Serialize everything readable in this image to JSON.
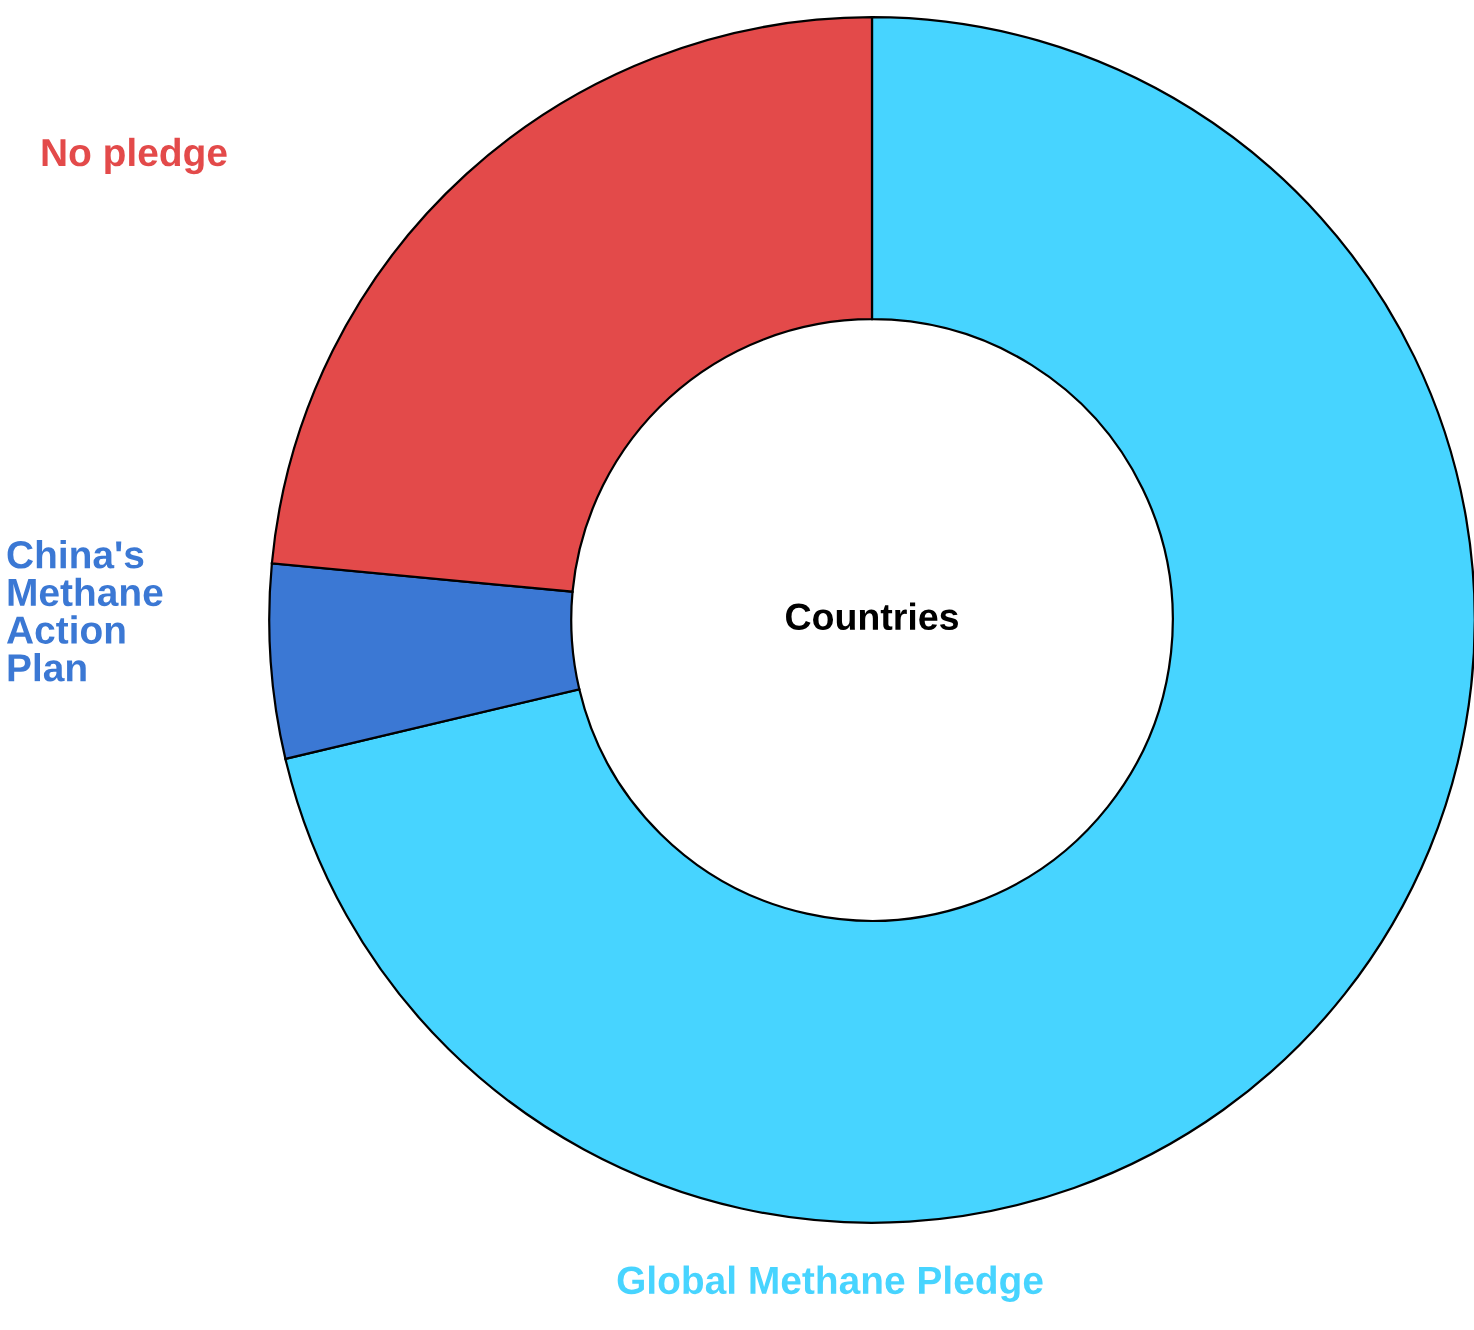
{
  "chart_data": {
    "type": "donut",
    "title": "Countries",
    "categories": [
      "Global Methane Pledge",
      "China's Methane Action Plan",
      "No pledge"
    ],
    "values": [
      71.3,
      5.2,
      23.5
    ],
    "colors": [
      "#47d4ff",
      "#3b78d4",
      "#e34a4a"
    ]
  }
}
